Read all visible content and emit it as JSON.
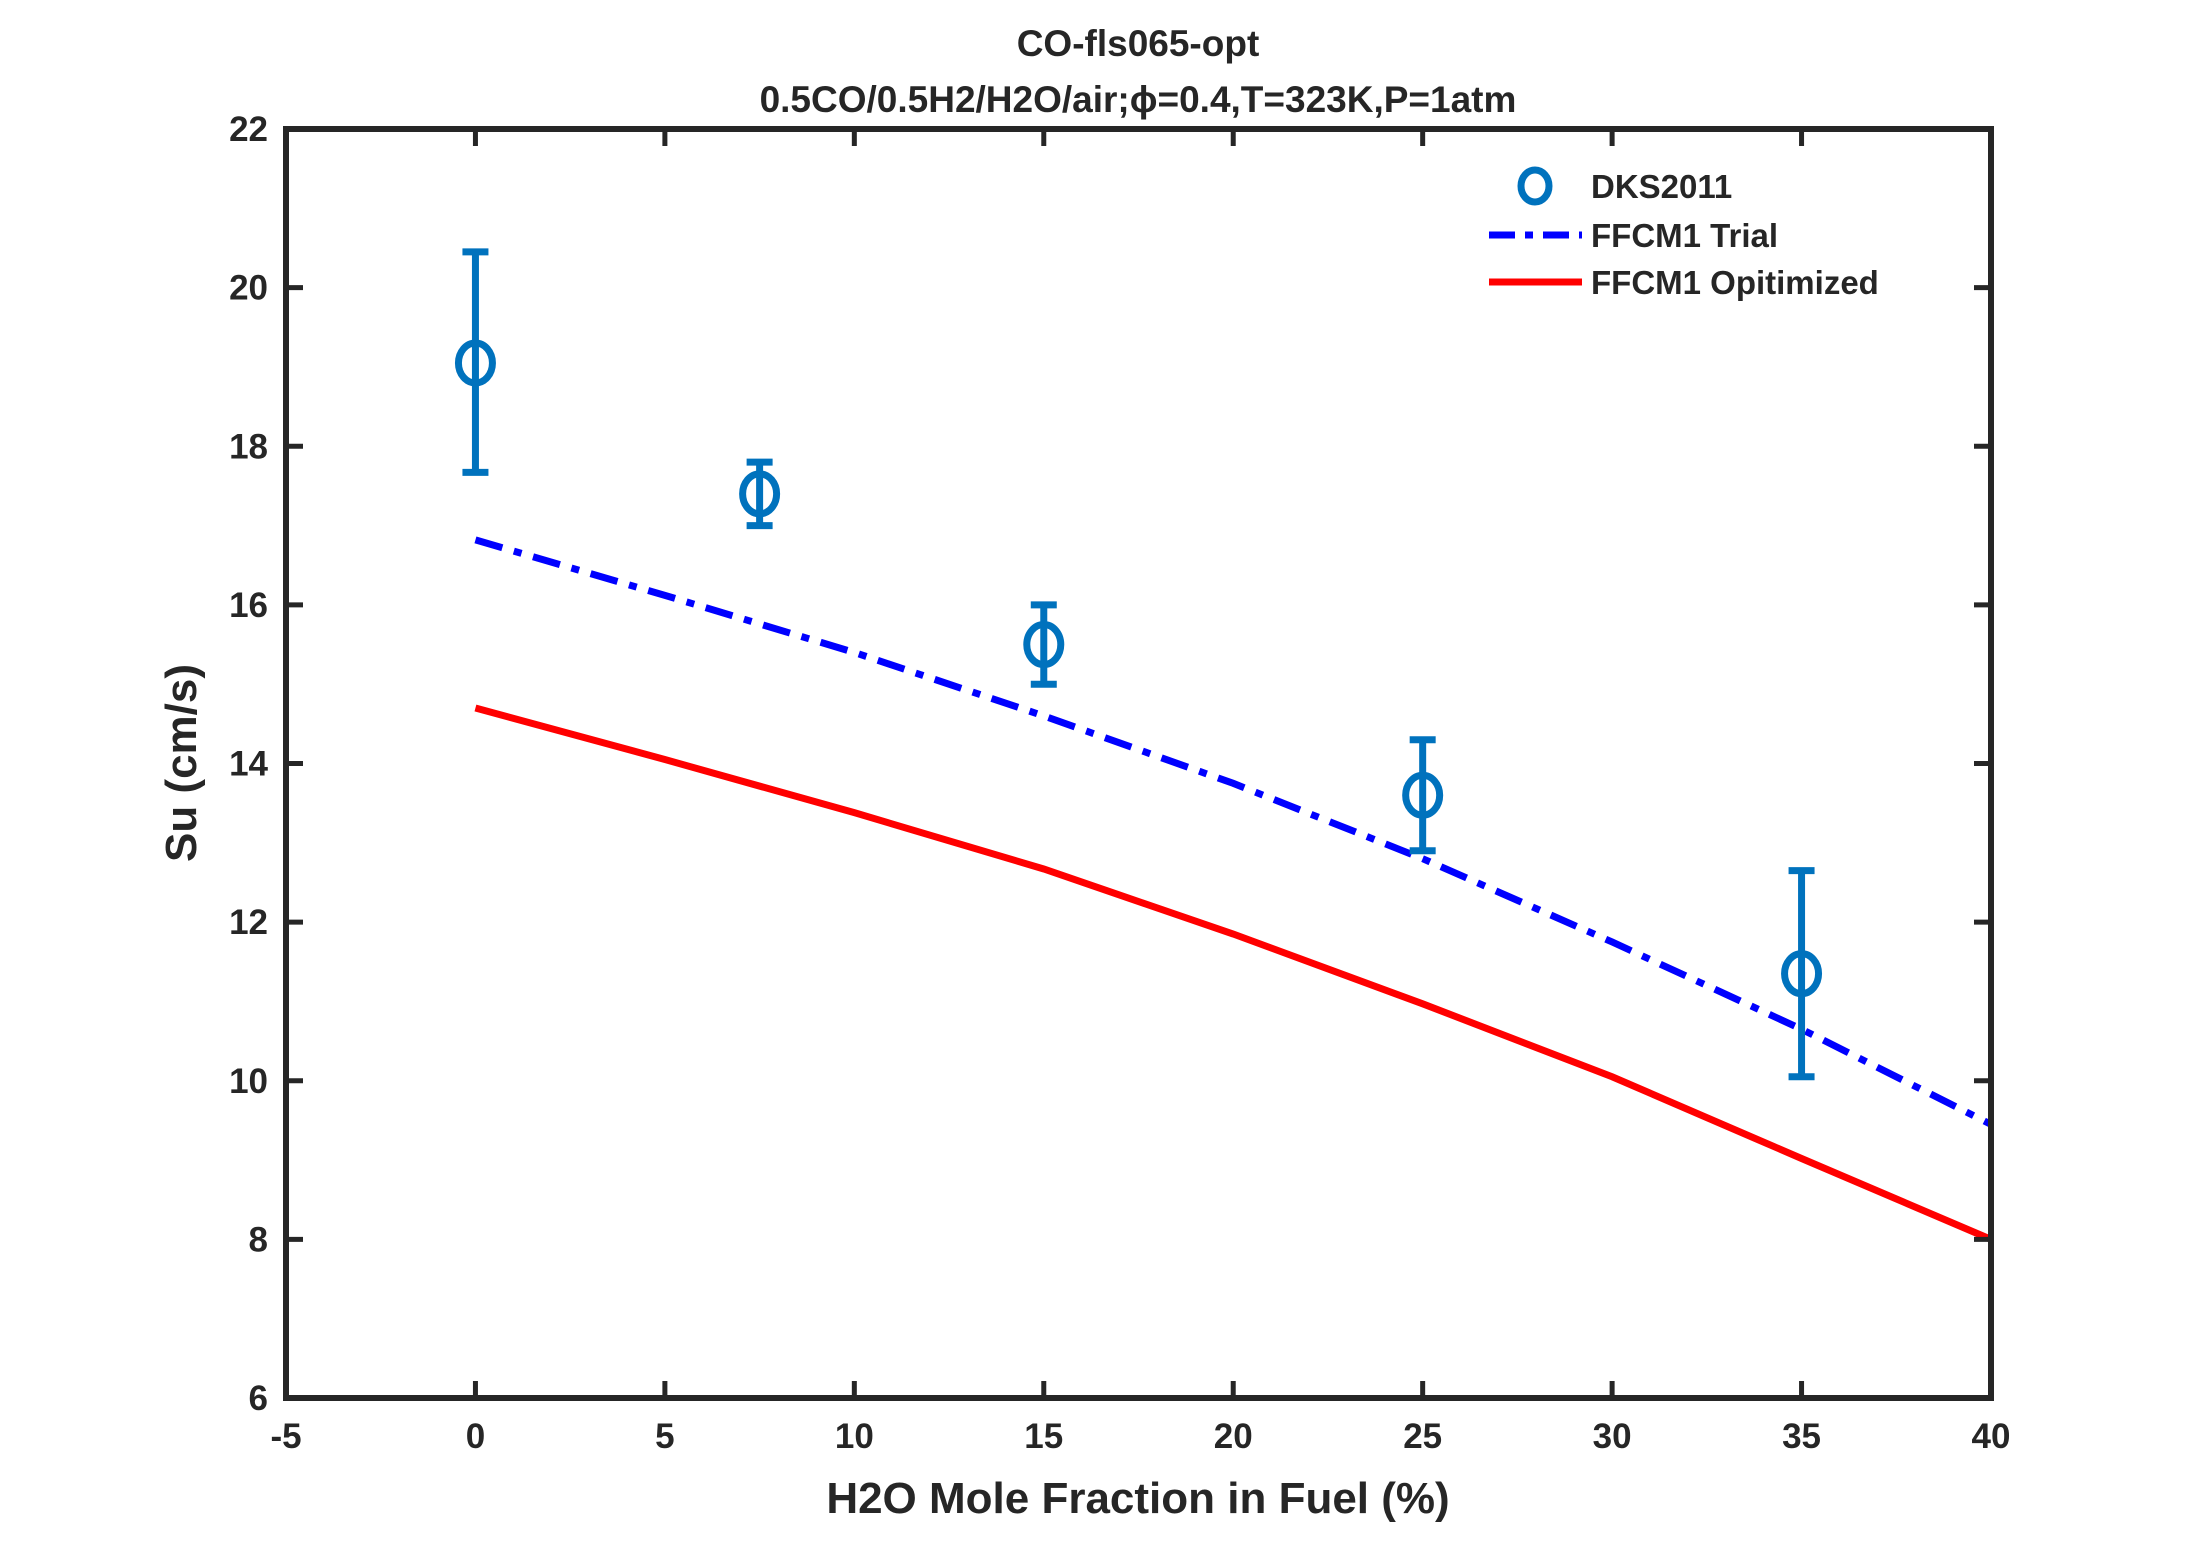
{
  "chart_data": {
    "type": "line",
    "title": "CO-fls065-opt",
    "subtitle": "0.5CO/0.5H2/H2O/air;ϕ=0.4,T=323K,P=1atm",
    "xlabel": "H2O Mole Fraction in Fuel (%)",
    "ylabel": "Su (cm/s)",
    "xlim": [
      -5,
      40
    ],
    "ylim": [
      6,
      22
    ],
    "xticks": [
      "-5",
      "0",
      "5",
      "10",
      "15",
      "20",
      "25",
      "30",
      "35",
      "40"
    ],
    "yticks": [
      "6",
      "8",
      "10",
      "12",
      "14",
      "16",
      "18",
      "20",
      "22"
    ],
    "grid": false,
    "legend_position": "top-right",
    "series": [
      {
        "name": "DKS2011",
        "kind": "scatter-errorbar",
        "marker": "circle",
        "color": "#0072BD",
        "x": [
          0,
          7.5,
          15,
          25,
          35
        ],
        "y": [
          19.05,
          17.4,
          15.5,
          13.6,
          11.35
        ],
        "y_low": [
          17.67,
          17.0,
          15.0,
          12.9,
          10.05
        ],
        "y_high": [
          20.45,
          17.8,
          16.0,
          14.3,
          12.65
        ]
      },
      {
        "name": "FFCM1 Trial",
        "kind": "line",
        "style": "dash-dot",
        "color": "#0000FF",
        "x": [
          0,
          5,
          10,
          15,
          20,
          25,
          30,
          35,
          40
        ],
        "y": [
          16.82,
          16.12,
          15.4,
          14.6,
          13.75,
          12.8,
          11.75,
          10.65,
          9.45
        ]
      },
      {
        "name": "FFCM1 Opitimized",
        "kind": "line",
        "style": "solid",
        "color": "#FF0000",
        "x": [
          0,
          5,
          10,
          15,
          20,
          25,
          30,
          35,
          40
        ],
        "y": [
          14.7,
          14.05,
          13.38,
          12.67,
          11.85,
          10.97,
          10.05,
          9.02,
          8.0
        ]
      }
    ]
  }
}
